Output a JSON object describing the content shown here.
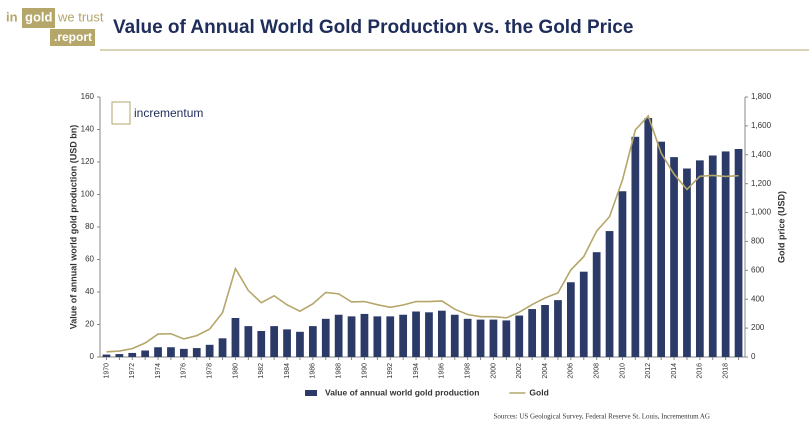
{
  "logo": {
    "top_left": "in",
    "top_box": "gold",
    "top_right": "we trust",
    "bottom": ".report"
  },
  "brand": "incrementum",
  "chart_data": {
    "type": "bar",
    "title": "Value of Annual World Gold Production vs. the Gold Price",
    "y_label": "Value of annual world gold production (USD bn)",
    "y2_label": "Gold price (USD)",
    "source": "Sources: US Geological Survey, Federal Reserve St. Louis, Incrementum AG",
    "categories": [
      "1970",
      null,
      "1972",
      null,
      "1974",
      null,
      "1976",
      null,
      "1978",
      null,
      "1980",
      null,
      "1982",
      null,
      "1984",
      null,
      "1986",
      null,
      "1988",
      null,
      "1990",
      null,
      "1992",
      null,
      "1994",
      null,
      "1996",
      null,
      "1998",
      null,
      "2000",
      null,
      "2002",
      null,
      "2004",
      null,
      "2006",
      null,
      "2008",
      null,
      "2010",
      null,
      "2012",
      null,
      "2014",
      null,
      "2016",
      null,
      "2018",
      null
    ],
    "series": [
      {
        "name": "Value of annual world gold production",
        "type": "bar",
        "color": "#2b3a67",
        "values": [
          1.5,
          1.8,
          2.5,
          4,
          6,
          6,
          5,
          5.5,
          7.5,
          11.5,
          24,
          19,
          16,
          19,
          17,
          15.5,
          19,
          23.5,
          26,
          25,
          26.5,
          25,
          25,
          26,
          28,
          27.5,
          28.5,
          26,
          23.5,
          23,
          23,
          22.5,
          25.5,
          29.5,
          32,
          35,
          46,
          52.5,
          64.5,
          77.5,
          102,
          135.5,
          147,
          132.5,
          123,
          116,
          121,
          124,
          126.5,
          128
        ]
      },
      {
        "name": "Gold",
        "type": "line",
        "axis": "y2",
        "color": "#b5a66a",
        "values": [
          36,
          41,
          58,
          97,
          159,
          161,
          125,
          148,
          193,
          307,
          612,
          460,
          376,
          424,
          361,
          317,
          368,
          447,
          437,
          381,
          384,
          362,
          344,
          360,
          384,
          384,
          388,
          331,
          294,
          279,
          279,
          271,
          310,
          363,
          409,
          444,
          603,
          695,
          872,
          972,
          1225,
          1572,
          1669,
          1411,
          1266,
          1160,
          1251,
          1257,
          1250,
          1255
        ]
      }
    ],
    "ylim": [
      0,
      160
    ],
    "yticks": [
      0,
      20,
      40,
      60,
      80,
      100,
      120,
      140,
      160
    ],
    "y2lim": [
      0,
      1800
    ],
    "y2ticks": [
      0,
      200,
      400,
      600,
      800,
      {
        "value": 1000,
        "label": "1,000"
      },
      {
        "value": 1200,
        "label": "1,200"
      },
      {
        "value": 1400,
        "label": "1,400"
      },
      {
        "value": 1600,
        "label": "1,600"
      },
      {
        "value": 1800,
        "label": "1,800"
      }
    ],
    "grid": false,
    "legend": "bottom"
  }
}
